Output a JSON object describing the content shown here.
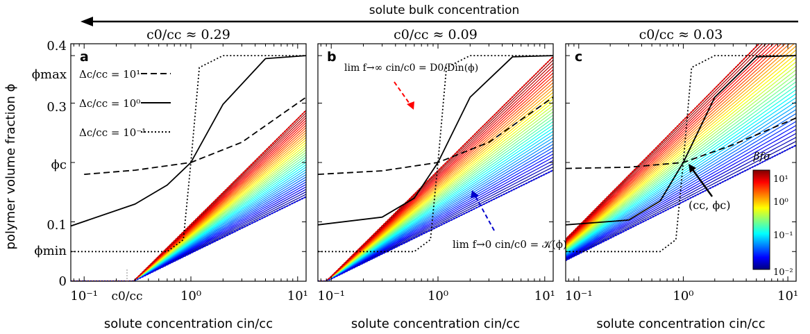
{
  "figure": {
    "arrow_label": "solute bulk concentration",
    "ylabel": "polymer volume fraction ϕ",
    "y_ticks": [
      "0.4",
      "ϕmax",
      "0.3",
      "ϕc",
      "0.1",
      "ϕmin",
      "0"
    ],
    "x_tick_labels": [
      "10⁻¹",
      "10⁰",
      "10¹"
    ],
    "colorbar": {
      "title": "βfσ",
      "ticks": [
        "10¹",
        "10⁰",
        "10⁻¹",
        "10⁻²"
      ],
      "colormap": "jet"
    },
    "legend": [
      {
        "label": "Δc/cc = 10¹",
        "style": "dashed"
      },
      {
        "label": "Δc/cc = 10⁰",
        "style": "solid"
      },
      {
        "label": "Δc/cc = 10⁻¹",
        "style": "dotted"
      }
    ],
    "annotations": {
      "b_top": "lim f→∞ cin/c0 = D0/Din(ϕ)",
      "b_bottom": "lim f→0 cin/c0 = 𝒦(ϕ)",
      "c_point": "(cc, ϕc)",
      "a_c0": "c0/cc"
    }
  },
  "chart_data": [
    {
      "panel": "a",
      "title": "c0/cc ≈ 0.29",
      "type": "line",
      "xlabel": "solute concentration cin/cc",
      "ylabel": "polymer volume fraction ϕ",
      "xscale": "log",
      "xlim": [
        0.075,
        12
      ],
      "ylim": [
        0,
        0.4
      ],
      "c0": 0.29,
      "phi_min": 0.05,
      "phi_c": 0.2,
      "phi_max": 0.38,
      "colored_family": {
        "parameter": "βfσ",
        "range": [
          0.01,
          10
        ],
        "count": 36,
        "lower_envelope_slope": 0.088,
        "upper_envelope_slope": 0.178
      },
      "series": [
        {
          "style": "dashed",
          "x": [
            0.1,
            0.3,
            1.0,
            3.0,
            12.0
          ],
          "y": [
            0.18,
            0.187,
            0.2,
            0.234,
            0.31
          ]
        },
        {
          "style": "solid",
          "x": [
            0.075,
            0.3,
            0.6,
            1.0,
            2.0,
            5.0,
            12.0
          ],
          "y": [
            0.093,
            0.13,
            0.162,
            0.2,
            0.298,
            0.375,
            0.38
          ]
        },
        {
          "style": "dotted",
          "x": [
            0.075,
            0.6,
            0.85,
            1.0,
            1.2,
            2.0,
            12.0
          ],
          "y": [
            0.05,
            0.05,
            0.07,
            0.2,
            0.36,
            0.38,
            0.38
          ]
        }
      ]
    },
    {
      "panel": "b",
      "title": "c0/cc ≈ 0.09",
      "type": "line",
      "xlabel": "solute concentration cin/cc",
      "xscale": "log",
      "xlim": [
        0.075,
        12
      ],
      "ylim": [
        0,
        0.4
      ],
      "c0": 0.09,
      "colored_family": {
        "parameter": "βfσ",
        "range": [
          0.01,
          10
        ],
        "count": 36,
        "lower_envelope_slope": 0.088,
        "upper_envelope_slope": 0.178
      },
      "series": [
        {
          "style": "dashed",
          "x": [
            0.075,
            0.3,
            1.0,
            3.0,
            12.0
          ],
          "y": [
            0.18,
            0.186,
            0.2,
            0.234,
            0.31
          ]
        },
        {
          "style": "solid",
          "x": [
            0.075,
            0.3,
            0.6,
            1.0,
            2.0,
            5.0,
            12.0
          ],
          "y": [
            0.095,
            0.108,
            0.14,
            0.2,
            0.31,
            0.378,
            0.38
          ]
        },
        {
          "style": "dotted",
          "x": [
            0.075,
            0.6,
            0.85,
            1.0,
            1.2,
            2.0,
            12.0
          ],
          "y": [
            0.05,
            0.05,
            0.07,
            0.2,
            0.36,
            0.38,
            0.38
          ]
        }
      ]
    },
    {
      "panel": "c",
      "title": "c0/cc ≈ 0.03",
      "type": "line",
      "xlabel": "solute concentration cin/cc",
      "xscale": "log",
      "xlim": [
        0.075,
        12
      ],
      "ylim": [
        0,
        0.4
      ],
      "c0": 0.03,
      "colored_family": {
        "parameter": "βfσ",
        "range": [
          0.01,
          10
        ],
        "count": 36,
        "lower_envelope_slope": 0.088,
        "upper_envelope_slope": 0.178
      },
      "series": [
        {
          "style": "dashed",
          "x": [
            0.075,
            0.3,
            1.0,
            3.0,
            12.0
          ],
          "y": [
            0.19,
            0.192,
            0.2,
            0.23,
            0.275
          ]
        },
        {
          "style": "solid",
          "x": [
            0.075,
            0.3,
            0.6,
            1.0,
            2.0,
            5.0,
            12.0
          ],
          "y": [
            0.095,
            0.103,
            0.135,
            0.2,
            0.31,
            0.378,
            0.38
          ]
        },
        {
          "style": "dotted",
          "x": [
            0.075,
            0.6,
            0.85,
            1.0,
            1.2,
            2.0,
            12.0
          ],
          "y": [
            0.05,
            0.05,
            0.07,
            0.2,
            0.36,
            0.38,
            0.38
          ]
        }
      ]
    }
  ]
}
